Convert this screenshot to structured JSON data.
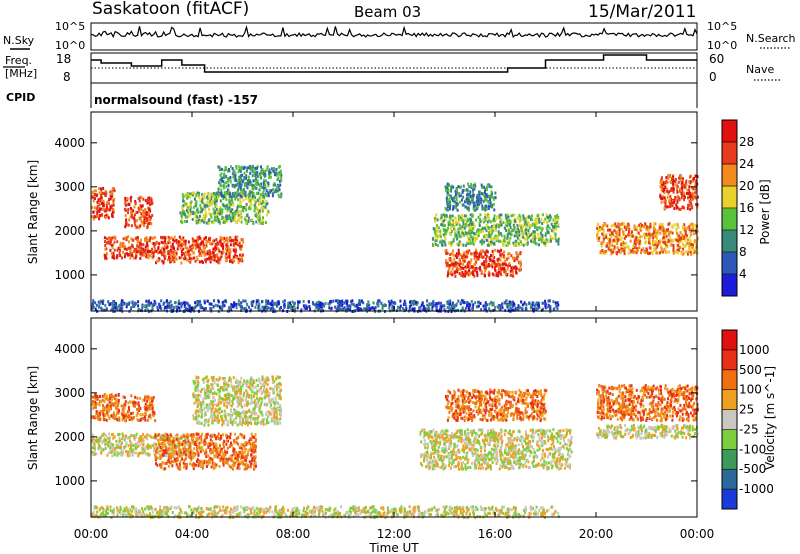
{
  "header": {
    "station": "Saskatoon (fitACF)",
    "beam": "Beam 03",
    "date": "15/Mar/2011"
  },
  "sky_panel": {
    "left_label": "N.Sky",
    "left_ticks": [
      "10^5",
      "10^0"
    ],
    "right_ticks": [
      "10^5",
      "10^0"
    ],
    "right_label": "N.Search"
  },
  "freq_panel": {
    "left_label_1": "Freq.",
    "left_label_2": "[MHz]",
    "left_ticks": [
      "18",
      "8"
    ],
    "right_ticks": [
      "60",
      "0"
    ],
    "right_label": "Nave",
    "cpid_label": "CPID",
    "cpid_value": "normalsound (fast) -157"
  },
  "x_axis": {
    "label": "Time UT",
    "ticks": [
      "00:00",
      "04:00",
      "08:00",
      "12:00",
      "16:00",
      "20:00",
      "00:00"
    ]
  },
  "chart_data": [
    {
      "type": "heatmap",
      "panel": "power",
      "xlabel": "Time UT",
      "ylabel": "Slant Range [km]",
      "xlim": [
        0,
        24
      ],
      "ylim": [
        180,
        4700
      ],
      "yticks": [
        "1000",
        "2000",
        "3000",
        "4000"
      ],
      "colorbar": {
        "label": "Power [dB]",
        "ticks": [
          "4",
          "8",
          "12",
          "16",
          "20",
          "24",
          "28"
        ],
        "colors": [
          "#1b1bd8",
          "#2d58b8",
          "#3a8a7c",
          "#58c23a",
          "#e8d22b",
          "#f28a1e",
          "#e83a1c",
          "#e01010"
        ]
      },
      "regions": [
        {
          "t0": 0.0,
          "t1": 0.9,
          "r0": 2300,
          "r1": 3000,
          "level": 6
        },
        {
          "t0": 0.5,
          "t1": 2.5,
          "r0": 1400,
          "r1": 1900,
          "level": 6
        },
        {
          "t0": 1.3,
          "t1": 2.4,
          "r0": 2100,
          "r1": 2800,
          "level": 6
        },
        {
          "t0": 2.5,
          "t1": 6.0,
          "r0": 1300,
          "r1": 1900,
          "level": 6
        },
        {
          "t0": 3.5,
          "t1": 7.0,
          "r0": 2200,
          "r1": 2900,
          "level": 3
        },
        {
          "t0": 5.0,
          "t1": 7.5,
          "r0": 2800,
          "r1": 3500,
          "level": 2
        },
        {
          "t0": 14.0,
          "t1": 17.0,
          "r0": 1000,
          "r1": 1600,
          "level": 6
        },
        {
          "t0": 13.5,
          "t1": 18.5,
          "r0": 1700,
          "r1": 2400,
          "level": 3
        },
        {
          "t0": 14.0,
          "t1": 16.0,
          "r0": 2500,
          "r1": 3100,
          "level": 2
        },
        {
          "t0": 20.0,
          "t1": 24.0,
          "r0": 1500,
          "r1": 2200,
          "level": 5
        },
        {
          "t0": 22.5,
          "t1": 24.0,
          "r0": 2500,
          "r1": 3300,
          "level": 6
        },
        {
          "t0": 0.0,
          "t1": 18.5,
          "r0": 200,
          "r1": 450,
          "level": 1
        }
      ]
    },
    {
      "type": "heatmap",
      "panel": "velocity",
      "xlabel": "Time UT",
      "ylabel": "Slant Range [km]",
      "xlim": [
        0,
        24
      ],
      "ylim": [
        180,
        4700
      ],
      "yticks": [
        "1000",
        "2000",
        "3000",
        "4000"
      ],
      "colorbar": {
        "label": "Velocity [m s^-1]",
        "ticks": [
          "1000",
          "500",
          "100",
          "25",
          "-25",
          "-100",
          "-500",
          "-1000"
        ],
        "colors": [
          "#1b3ad8",
          "#2d6a9c",
          "#3d9a5a",
          "#7ccf3c",
          "#c8c8c0",
          "#f0a020",
          "#f07010",
          "#e83018",
          "#e01010"
        ]
      },
      "regions": [
        {
          "t0": 0.0,
          "t1": 2.5,
          "r0": 2400,
          "r1": 3000,
          "level": 6
        },
        {
          "t0": 0.0,
          "t1": 4.0,
          "r0": 1600,
          "r1": 2100,
          "level": 4
        },
        {
          "t0": 2.5,
          "t1": 6.5,
          "r0": 1300,
          "r1": 2100,
          "level": 6
        },
        {
          "t0": 4.0,
          "t1": 7.5,
          "r0": 2300,
          "r1": 3400,
          "level": 4
        },
        {
          "t0": 13.0,
          "t1": 19.0,
          "r0": 1300,
          "r1": 2200,
          "level": 4
        },
        {
          "t0": 14.0,
          "t1": 18.0,
          "r0": 2400,
          "r1": 3100,
          "level": 6
        },
        {
          "t0": 20.0,
          "t1": 24.0,
          "r0": 2000,
          "r1": 2300,
          "level": 4
        },
        {
          "t0": 20.0,
          "t1": 24.0,
          "r0": 2400,
          "r1": 3200,
          "level": 6
        },
        {
          "t0": 0.0,
          "t1": 18.5,
          "r0": 200,
          "r1": 450,
          "level": 4
        }
      ]
    }
  ]
}
